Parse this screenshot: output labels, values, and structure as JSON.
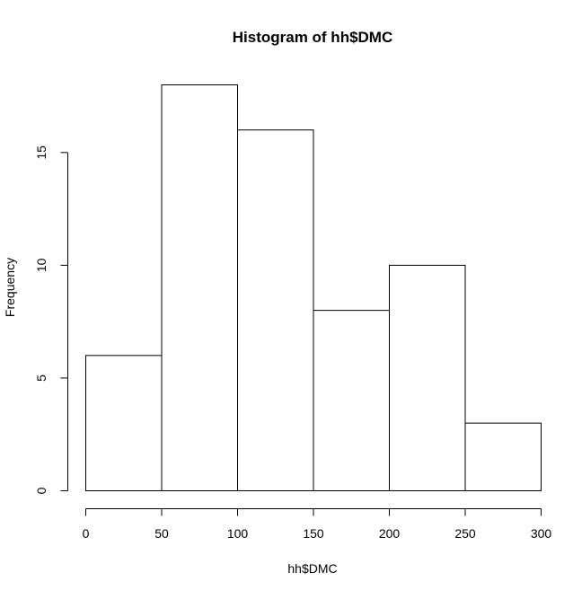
{
  "chart_data": {
    "type": "bar",
    "title": "Histogram of hh$DMC",
    "xlabel": "hh$DMC",
    "ylabel": "Frequency",
    "bins": [
      {
        "start": 0,
        "end": 50,
        "count": 6
      },
      {
        "start": 50,
        "end": 100,
        "count": 18
      },
      {
        "start": 100,
        "end": 150,
        "count": 16
      },
      {
        "start": 150,
        "end": 200,
        "count": 8
      },
      {
        "start": 200,
        "end": 250,
        "count": 10
      },
      {
        "start": 250,
        "end": 300,
        "count": 3
      }
    ],
    "xlim": [
      0,
      300
    ],
    "ylim": [
      0,
      18
    ],
    "x_ticks": [
      0,
      50,
      100,
      150,
      200,
      250,
      300
    ],
    "y_ticks": [
      0,
      5,
      10,
      15
    ],
    "grid": false,
    "colors": {
      "bar_fill": "#ffffff",
      "bar_stroke": "#000000",
      "axis": "#000000"
    }
  }
}
